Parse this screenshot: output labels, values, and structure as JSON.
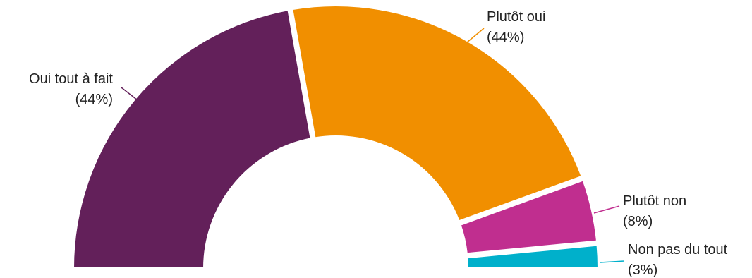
{
  "chart_data": {
    "type": "pie",
    "variant": "half-donut",
    "categories": [
      "Oui tout à fait",
      "Plutôt oui",
      "Plutôt non",
      "Non pas du tout"
    ],
    "values": [
      44,
      44,
      8,
      3
    ],
    "percent_labels": [
      "(44%)",
      "(44%)",
      "(8%)",
      "(3%)"
    ],
    "colors": [
      "#63205a",
      "#f18f00",
      "#c02e8f",
      "#00b0cb"
    ],
    "legend": "none",
    "title": ""
  }
}
